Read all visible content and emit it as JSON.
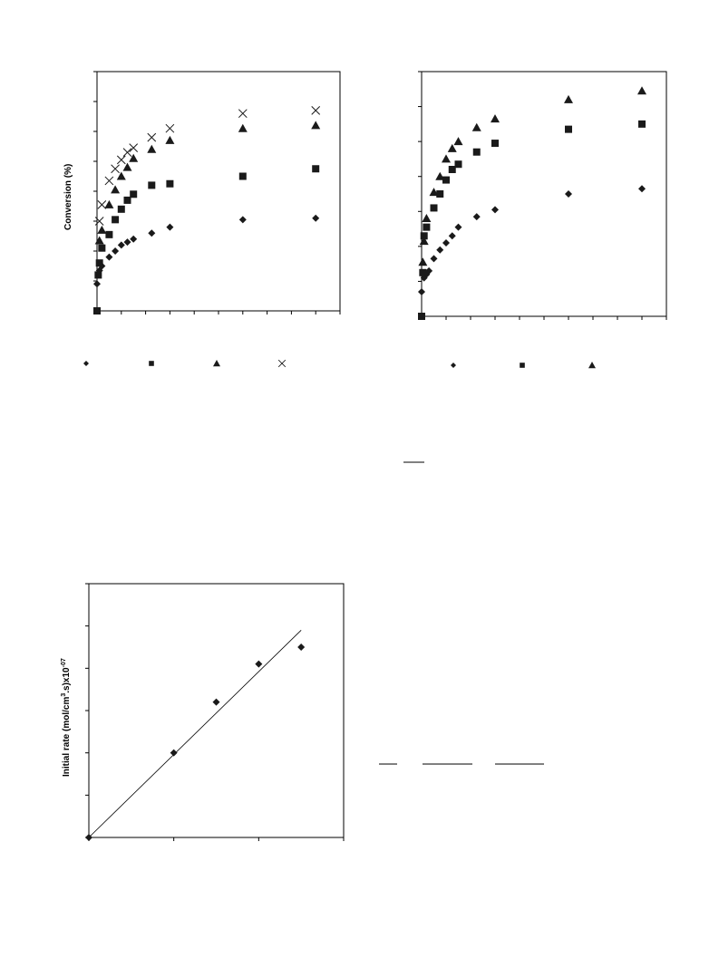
{
  "chart_data": [
    {
      "type": "scatter",
      "title": "",
      "xlabel": "",
      "ylabel": "Conversion (%)",
      "xlim": [
        0,
        10
      ],
      "ylim": [
        0,
        8
      ],
      "grid": false,
      "legend": "bottom",
      "series": [
        {
          "marker": "diamond",
          "x": [
            0,
            0.05,
            0.1,
            0.2,
            0.5,
            0.75,
            1,
            1.25,
            1.5,
            2.25,
            3,
            6,
            9
          ],
          "y": [
            0.9,
            1.2,
            1.35,
            1.5,
            1.8,
            2.0,
            2.2,
            2.3,
            2.4,
            2.6,
            2.8,
            3.05,
            3.1
          ]
        },
        {
          "marker": "square",
          "x": [
            0,
            0.05,
            0.1,
            0.2,
            0.5,
            0.75,
            1,
            1.25,
            1.5,
            2.25,
            3,
            6,
            9
          ],
          "y": [
            0,
            1.2,
            1.6,
            2.1,
            2.55,
            3.05,
            3.4,
            3.7,
            3.9,
            4.2,
            4.25,
            4.5,
            4.75
          ]
        },
        {
          "marker": "triangle",
          "x": [
            0.1,
            0.2,
            0.5,
            0.75,
            1,
            1.25,
            1.5,
            2.25,
            3,
            6,
            9
          ],
          "y": [
            2.35,
            2.7,
            3.55,
            4.05,
            4.5,
            4.8,
            5.1,
            5.4,
            5.7,
            6.1,
            6.2
          ]
        },
        {
          "marker": "cross",
          "x": [
            0.1,
            0.2,
            0.5,
            0.75,
            1,
            1.25,
            1.5,
            2.25,
            3,
            6,
            9
          ],
          "y": [
            3.0,
            3.55,
            4.35,
            4.75,
            5.05,
            5.3,
            5.45,
            5.8,
            6.1,
            6.6,
            6.7
          ]
        }
      ]
    },
    {
      "type": "scatter",
      "title": "",
      "xlabel": "",
      "ylabel": "",
      "xlim": [
        0,
        10
      ],
      "ylim": [
        0,
        7
      ],
      "grid": false,
      "legend": "bottom",
      "series": [
        {
          "marker": "diamond",
          "x": [
            0,
            0.1,
            0.2,
            0.3,
            0.5,
            0.75,
            1,
            1.25,
            1.5,
            2.25,
            3,
            6,
            9
          ],
          "y": [
            0.7,
            1.1,
            1.2,
            1.3,
            1.65,
            1.9,
            2.1,
            2.3,
            2.55,
            2.85,
            3.05,
            3.5,
            3.65
          ]
        },
        {
          "marker": "square",
          "x": [
            0,
            0.05,
            0.1,
            0.2,
            0.5,
            0.75,
            1,
            1.25,
            1.5,
            2.25,
            3,
            6,
            9
          ],
          "y": [
            0,
            1.25,
            2.3,
            2.55,
            3.1,
            3.5,
            3.9,
            4.2,
            4.35,
            4.7,
            4.95,
            5.35,
            5.5
          ]
        },
        {
          "marker": "triangle",
          "x": [
            0.05,
            0.1,
            0.2,
            0.5,
            0.75,
            1,
            1.25,
            1.5,
            2.25,
            3,
            6,
            9
          ],
          "y": [
            1.55,
            2.15,
            2.8,
            3.55,
            4.0,
            4.5,
            4.8,
            5.0,
            5.4,
            5.65,
            6.2,
            6.45
          ]
        }
      ]
    },
    {
      "type": "scatter",
      "title": "",
      "xlabel": "",
      "ylabel": "Initial rate (mol/cm",
      "ylabel_sup1": "3",
      "ylabel_mid": ".s)x10",
      "ylabel_sup2": "-07",
      "xlim": [
        0,
        3
      ],
      "ylim": [
        0,
        3
      ],
      "grid": false,
      "trendline": {
        "x": [
          0,
          2.5
        ],
        "y": [
          0,
          2.45
        ]
      },
      "series": [
        {
          "marker": "diamond",
          "x": [
            0,
            1,
            1.5,
            2,
            2.5
          ],
          "y": [
            0,
            1.0,
            1.6,
            2.05,
            2.25
          ]
        }
      ]
    }
  ],
  "decor": {
    "marker_color": "#1a1a1a",
    "line_color": "#000000"
  }
}
